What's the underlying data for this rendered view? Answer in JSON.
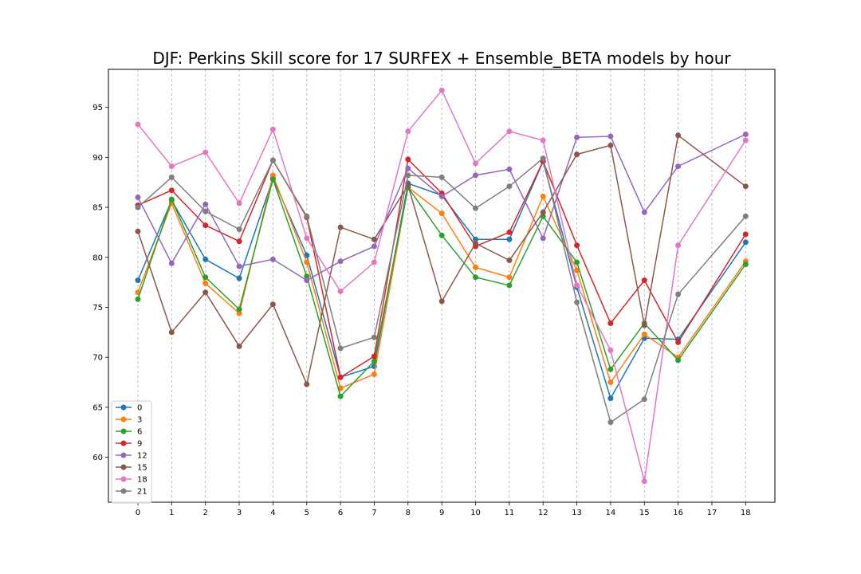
{
  "chart_data": {
    "type": "line",
    "title": "DJF: Perkins Skill score for 17 SURFEX + Ensemble_BETA models by hour",
    "xlabel": "",
    "ylabel": "",
    "categories": [
      "0",
      "1",
      "2",
      "3",
      "4",
      "5",
      "6",
      "7",
      "8",
      "9",
      "10",
      "11",
      "12",
      "13",
      "14",
      "15",
      "16",
      "17",
      "18"
    ],
    "ylim": [
      55.5,
      98.8
    ],
    "yticks": [
      60,
      65,
      70,
      75,
      80,
      85,
      90,
      95
    ],
    "grid": "vertical dashed at each category",
    "legend_position": "lower-left",
    "series": [
      {
        "name": "0",
        "color": "#1f77b4",
        "values": [
          77.7,
          85.7,
          79.8,
          77.9,
          87.9,
          80.2,
          68.0,
          69.1,
          87.4,
          86.2,
          81.8,
          81.8,
          89.6,
          77.0,
          65.9,
          71.9,
          71.8,
          null,
          81.5
        ]
      },
      {
        "name": "3",
        "color": "#ff7f0e",
        "values": [
          76.5,
          85.4,
          77.4,
          74.4,
          88.2,
          79.5,
          66.9,
          68.3,
          87.0,
          84.4,
          79.0,
          78.0,
          86.1,
          78.7,
          67.5,
          72.3,
          70.0,
          null,
          79.6
        ]
      },
      {
        "name": "6",
        "color": "#2ca02c",
        "values": [
          75.8,
          85.8,
          78.0,
          74.8,
          87.8,
          78.1,
          66.1,
          69.6,
          87.0,
          82.2,
          78.0,
          77.2,
          84.1,
          79.5,
          68.8,
          73.4,
          69.7,
          null,
          79.3
        ]
      },
      {
        "name": "9",
        "color": "#d62728",
        "values": [
          85.2,
          86.7,
          83.2,
          81.6,
          89.7,
          84.0,
          68.0,
          70.1,
          89.8,
          86.4,
          81.1,
          82.5,
          89.6,
          81.2,
          73.4,
          77.7,
          71.5,
          null,
          82.3
        ]
      },
      {
        "name": "12",
        "color": "#9467bd",
        "values": [
          86.0,
          79.4,
          85.3,
          79.1,
          79.8,
          77.7,
          79.6,
          81.1,
          88.9,
          86.1,
          88.2,
          88.8,
          81.9,
          92.0,
          92.1,
          84.5,
          89.1,
          null,
          92.3
        ]
      },
      {
        "name": "15",
        "color": "#8c564b",
        "values": [
          82.6,
          72.5,
          76.5,
          71.1,
          75.3,
          67.3,
          83.0,
          81.8,
          87.2,
          75.6,
          81.4,
          79.7,
          84.5,
          90.3,
          91.2,
          73.2,
          92.2,
          null,
          87.1
        ]
      },
      {
        "name": "18",
        "color": "#e377c2",
        "values": [
          93.3,
          89.1,
          90.5,
          85.4,
          92.8,
          81.9,
          76.6,
          79.5,
          92.6,
          96.7,
          89.4,
          92.6,
          91.7,
          77.2,
          70.7,
          57.6,
          81.2,
          null,
          91.7
        ]
      },
      {
        "name": "21",
        "color": "#7f7f7f",
        "values": [
          85.0,
          88.0,
          84.6,
          82.8,
          89.7,
          84.1,
          70.9,
          72.0,
          88.2,
          88.0,
          84.9,
          87.1,
          89.9,
          75.5,
          63.5,
          65.8,
          76.3,
          null,
          84.1
        ]
      }
    ]
  }
}
